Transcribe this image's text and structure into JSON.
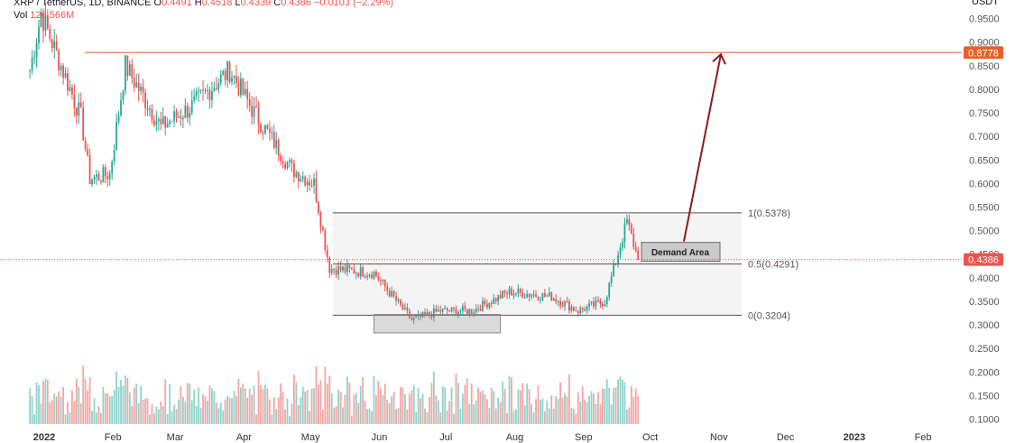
{
  "header": {
    "symbol": "XRP / TetherUS, 1D, BINANCE",
    "o_label": "O",
    "o_value": "0.4491",
    "h_label": "H",
    "h_value": "0.4518",
    "l_label": "L",
    "l_value": "0.4339",
    "c_label": "C",
    "c_value": "0.4386",
    "change": "−0.0103 (−2.29%)",
    "vol_label": "Vol",
    "vol_value": "126.566M"
  },
  "colors": {
    "up": "#26a69a",
    "down": "#ef5350",
    "vol_up": "#8fd3cc",
    "vol_down": "#f5a5a3",
    "target_line": "#e8804a",
    "target_badge": "#e8602a",
    "price_badge": "#ef5350",
    "arrow": "#8b1a1a",
    "box_fill": "#f4f4f4",
    "grid_text": "#555555"
  },
  "chart_data": {
    "type": "candlestick",
    "title": "XRP / TetherUS, 1D, BINANCE",
    "y_axis_unit": "USDT",
    "ylim": [
      0.08,
      0.9855
    ],
    "y_ticks": [
      "0.9500",
      "0.9000",
      "0.8500",
      "0.8000",
      "0.7500",
      "0.7000",
      "0.6500",
      "0.6000",
      "0.5500",
      "0.5000",
      "0.4500",
      "0.4000",
      "0.3500",
      "0.3000",
      "0.2500",
      "0.2000",
      "0.1500",
      "0.1000"
    ],
    "x_ticks": [
      "2022",
      "Feb",
      "Mar",
      "Apr",
      "May",
      "Jun",
      "Jul",
      "Aug",
      "Sep",
      "Oct",
      "Nov",
      "Dec",
      "2023",
      "Feb"
    ],
    "key_points": [
      {
        "date": "2021-12-28",
        "close": 0.84
      },
      {
        "date": "2022-01-02",
        "close": 0.96
      },
      {
        "date": "2022-01-20",
        "close": 0.74
      },
      {
        "date": "2022-01-24",
        "close": 0.61
      },
      {
        "date": "2022-02-02",
        "close": 0.62
      },
      {
        "date": "2022-02-09",
        "close": 0.85
      },
      {
        "date": "2022-02-25",
        "close": 0.72
      },
      {
        "date": "2022-03-10",
        "close": 0.76
      },
      {
        "date": "2022-03-28",
        "close": 0.84
      },
      {
        "date": "2022-04-08",
        "close": 0.75
      },
      {
        "date": "2022-04-25",
        "close": 0.63
      },
      {
        "date": "2022-05-05",
        "close": 0.6
      },
      {
        "date": "2022-05-12",
        "close": 0.42
      },
      {
        "date": "2022-06-01",
        "close": 0.41
      },
      {
        "date": "2022-06-18",
        "close": 0.31
      },
      {
        "date": "2022-07-01",
        "close": 0.33
      },
      {
        "date": "2022-07-15",
        "close": 0.33
      },
      {
        "date": "2022-08-01",
        "close": 0.37
      },
      {
        "date": "2022-08-20",
        "close": 0.36
      },
      {
        "date": "2022-09-01",
        "close": 0.33
      },
      {
        "date": "2022-09-13",
        "close": 0.35
      },
      {
        "date": "2022-09-23",
        "close": 0.52
      },
      {
        "date": "2022-09-28",
        "close": 0.4386
      }
    ],
    "fib_levels": [
      {
        "label": "1(0.5378)",
        "value": 0.5378
      },
      {
        "label": "0.5(0.4291)",
        "value": 0.4291
      },
      {
        "label": "0(0.3204)",
        "value": 0.3204
      }
    ],
    "demand_area_label": "Demand Area",
    "demand_area": {
      "low": 0.435,
      "high": 0.475
    },
    "support_zone": {
      "low": 0.283,
      "high": 0.322,
      "from": "2022-06-01",
      "to": "2022-07-28"
    },
    "target_level": 0.8778,
    "target_label": "0.8778",
    "current_price_label": "0.4386",
    "current_price": 0.4386
  }
}
